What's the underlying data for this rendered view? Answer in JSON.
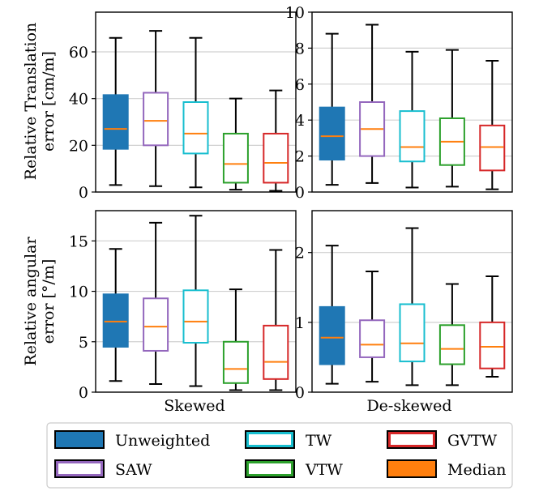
{
  "colors": {
    "Unweighted": "#1f77b4",
    "SAW": "#9467bd",
    "TW": "#17becf",
    "VTW": "#2ca02c",
    "GVTW": "#d62728",
    "Median": "#ff7f0e",
    "grid": "#d0d0d0"
  },
  "labels": {
    "row0_ylabel_line1": "Relative Translation",
    "row0_ylabel_line2": "error [cm/m]",
    "row1_ylabel_line1": "Relative angular",
    "row1_ylabel_line2": "error [°/m]",
    "col0_xlabel": "Skewed",
    "col1_xlabel": "De-skewed"
  },
  "legend": {
    "items": [
      {
        "label": "Unweighted",
        "color_key": "Unweighted",
        "filled": true
      },
      {
        "label": "SAW",
        "color_key": "SAW",
        "filled": false
      },
      {
        "label": "TW",
        "color_key": "TW",
        "filled": false
      },
      {
        "label": "VTW",
        "color_key": "VTW",
        "filled": false
      },
      {
        "label": "GVTW",
        "color_key": "GVTW",
        "filled": false
      },
      {
        "label": "Median",
        "color_key": "Median",
        "filled": true
      }
    ]
  },
  "chart_data": [
    {
      "type": "boxplot",
      "panel": "top-left",
      "xlabel": "",
      "ylabel": "Relative Translation error [cm/m]",
      "ylim": [
        0,
        77
      ],
      "yticks": [
        0,
        20,
        40,
        60
      ],
      "grid": "horizontal",
      "series": [
        {
          "name": "Unweighted",
          "whislo": 3,
          "q1": 18.5,
          "med": 27,
          "q3": 41.5,
          "whishi": 66
        },
        {
          "name": "SAW",
          "whislo": 2.5,
          "q1": 20,
          "med": 30.5,
          "q3": 42.5,
          "whishi": 69
        },
        {
          "name": "TW",
          "whislo": 2,
          "q1": 16.5,
          "med": 25,
          "q3": 38.5,
          "whishi": 66
        },
        {
          "name": "VTW",
          "whislo": 1,
          "q1": 4,
          "med": 12,
          "q3": 25,
          "whishi": 40
        },
        {
          "name": "GVTW",
          "whislo": 0.5,
          "q1": 4,
          "med": 12.5,
          "q3": 25,
          "whishi": 43.5
        }
      ]
    },
    {
      "type": "boxplot",
      "panel": "top-right",
      "xlabel": "",
      "ylabel": "",
      "ylim": [
        0,
        10
      ],
      "yticks": [
        0,
        2,
        4,
        6,
        8,
        10
      ],
      "grid": "horizontal",
      "series": [
        {
          "name": "Unweighted",
          "whislo": 0.4,
          "q1": 1.8,
          "med": 3.1,
          "q3": 4.7,
          "whishi": 8.8
        },
        {
          "name": "SAW",
          "whislo": 0.5,
          "q1": 2.0,
          "med": 3.5,
          "q3": 5.0,
          "whishi": 9.3
        },
        {
          "name": "TW",
          "whislo": 0.25,
          "q1": 1.7,
          "med": 2.5,
          "q3": 4.5,
          "whishi": 7.8
        },
        {
          "name": "VTW",
          "whislo": 0.3,
          "q1": 1.5,
          "med": 2.8,
          "q3": 4.1,
          "whishi": 7.9
        },
        {
          "name": "GVTW",
          "whislo": 0.15,
          "q1": 1.2,
          "med": 2.5,
          "q3": 3.7,
          "whishi": 7.3
        }
      ]
    },
    {
      "type": "boxplot",
      "panel": "bottom-left",
      "xlabel": "Skewed",
      "ylabel": "Relative angular error [°/m]",
      "ylim": [
        0,
        18
      ],
      "yticks": [
        0,
        5,
        10,
        15
      ],
      "grid": "horizontal",
      "series": [
        {
          "name": "Unweighted",
          "whislo": 1.1,
          "q1": 4.5,
          "med": 7.0,
          "q3": 9.7,
          "whishi": 14.2
        },
        {
          "name": "SAW",
          "whislo": 0.8,
          "q1": 4.1,
          "med": 6.5,
          "q3": 9.3,
          "whishi": 16.8
        },
        {
          "name": "TW",
          "whislo": 0.6,
          "q1": 4.9,
          "med": 7.0,
          "q3": 10.1,
          "whishi": 17.5
        },
        {
          "name": "VTW",
          "whislo": 0.2,
          "q1": 0.9,
          "med": 2.3,
          "q3": 5.0,
          "whishi": 10.2
        },
        {
          "name": "GVTW",
          "whislo": 0.2,
          "q1": 1.3,
          "med": 3.0,
          "q3": 6.6,
          "whishi": 14.1
        }
      ]
    },
    {
      "type": "boxplot",
      "panel": "bottom-right",
      "xlabel": "De-skewed",
      "ylabel": "",
      "ylim": [
        0,
        2.6
      ],
      "yticks": [
        0,
        1,
        2
      ],
      "grid": "horizontal",
      "series": [
        {
          "name": "Unweighted",
          "whislo": 0.12,
          "q1": 0.4,
          "med": 0.78,
          "q3": 1.22,
          "whishi": 2.1
        },
        {
          "name": "SAW",
          "whislo": 0.15,
          "q1": 0.5,
          "med": 0.68,
          "q3": 1.03,
          "whishi": 1.73
        },
        {
          "name": "TW",
          "whislo": 0.1,
          "q1": 0.44,
          "med": 0.7,
          "q3": 1.26,
          "whishi": 2.35
        },
        {
          "name": "VTW",
          "whislo": 0.1,
          "q1": 0.4,
          "med": 0.62,
          "q3": 0.96,
          "whishi": 1.55
        },
        {
          "name": "GVTW",
          "whislo": 0.22,
          "q1": 0.34,
          "med": 0.65,
          "q3": 1.0,
          "whishi": 1.66
        }
      ]
    }
  ]
}
